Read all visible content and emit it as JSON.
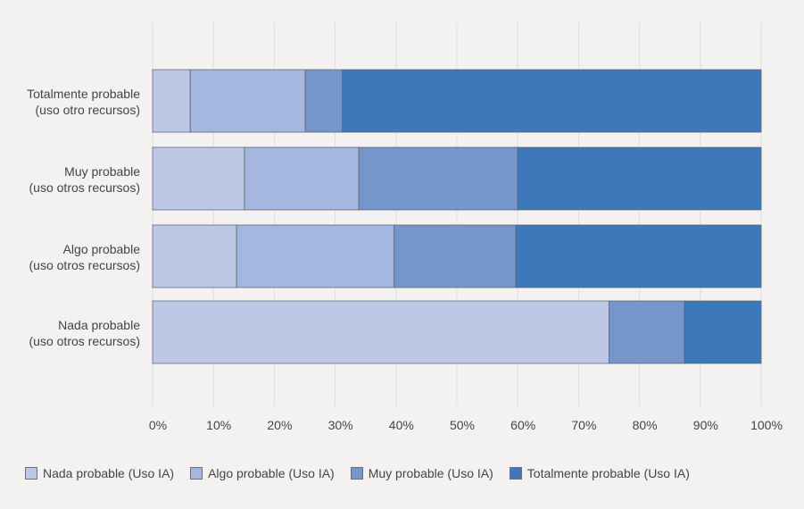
{
  "chart_data": {
    "type": "bar",
    "orientation": "horizontal",
    "stacked": true,
    "title": "",
    "xlabel": "",
    "ylabel": "",
    "xlim": [
      0,
      100
    ],
    "grid": true,
    "legend_position": "bottom",
    "categories": [
      "Totalmente probable\n(uso otro recursos)",
      "Muy probable\n(uso otros recursos)",
      "Algo probable\n(uso otros recursos)",
      "Nada probable\n(uso otros recursos)"
    ],
    "category_lines": [
      [
        "Totalmente probable",
        "(uso otro recursos)"
      ],
      [
        "Muy probable",
        "(uso otros recursos)"
      ],
      [
        "Algo probable",
        "(uso otros recursos)"
      ],
      [
        "Nada probable",
        "(uso otros recursos)"
      ]
    ],
    "x_ticks": [
      "0%",
      "10%",
      "20%",
      "30%",
      "40%",
      "50%",
      "60%",
      "70%",
      "80%",
      "90%",
      "100%"
    ],
    "series": [
      {
        "name": "Nada probable (Uso IA)",
        "color": "#BDC7E6",
        "values": [
          6.2,
          15.1,
          13.8,
          75.0
        ]
      },
      {
        "name": "Algo probable (Uso IA)",
        "color": "#A5B6DF",
        "values": [
          18.9,
          18.8,
          25.9,
          0.0
        ]
      },
      {
        "name": "Muy probable (Uso IA)",
        "color": "#7596CB",
        "values": [
          6.1,
          26.1,
          20.0,
          12.4
        ]
      },
      {
        "name": "Totalmente probable (Uso IA)",
        "color": "#3D78BB",
        "values": [
          68.8,
          40.0,
          40.3,
          12.6
        ]
      }
    ]
  }
}
